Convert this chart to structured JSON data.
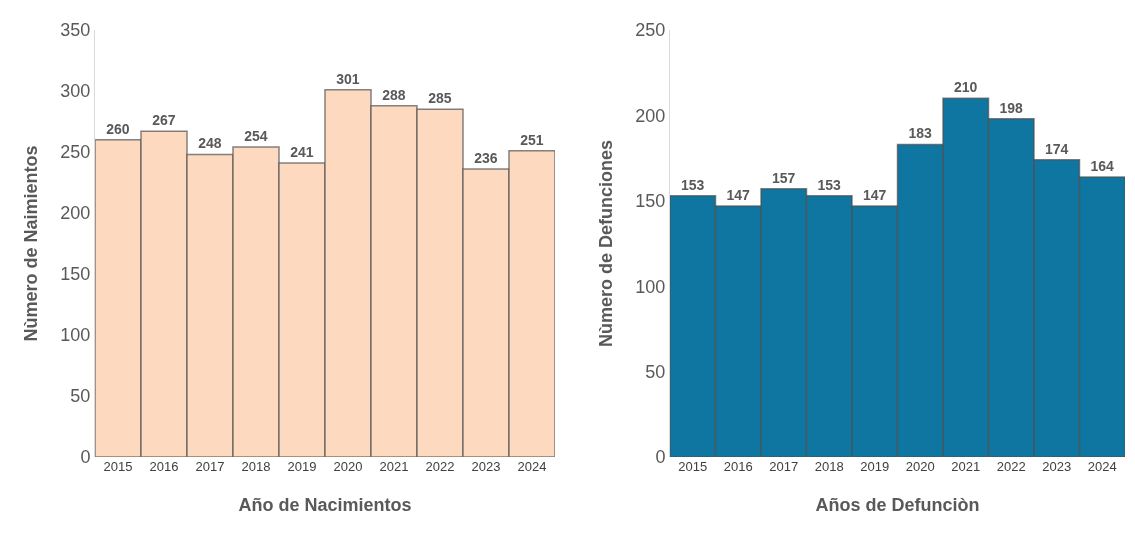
{
  "chart_data": [
    {
      "type": "bar",
      "xlabel": "Año de Nacimientos",
      "ylabel": "Nùmero de Naimientos",
      "categories": [
        "2015",
        "2016",
        "2017",
        "2018",
        "2019",
        "2020",
        "2021",
        "2022",
        "2023",
        "2024"
      ],
      "values": [
        260,
        267,
        248,
        254,
        241,
        301,
        288,
        285,
        236,
        251
      ],
      "color": "#fcd9bf",
      "ylim": [
        0,
        350
      ],
      "yticks": [
        0,
        50,
        100,
        150,
        200,
        250,
        300,
        350
      ],
      "data_labels": true
    },
    {
      "type": "bar",
      "xlabel": "Años de Defunciòn",
      "ylabel": "Nùmero de Defunciones",
      "categories": [
        "2015",
        "2016",
        "2017",
        "2018",
        "2019",
        "2020",
        "2021",
        "2022",
        "2023",
        "2024"
      ],
      "values": [
        153,
        147,
        157,
        153,
        147,
        183,
        210,
        198,
        174,
        164
      ],
      "color": "#0e76a0",
      "ylim": [
        0,
        250
      ],
      "yticks": [
        0,
        50,
        100,
        150,
        200,
        250
      ],
      "data_labels": true
    }
  ]
}
